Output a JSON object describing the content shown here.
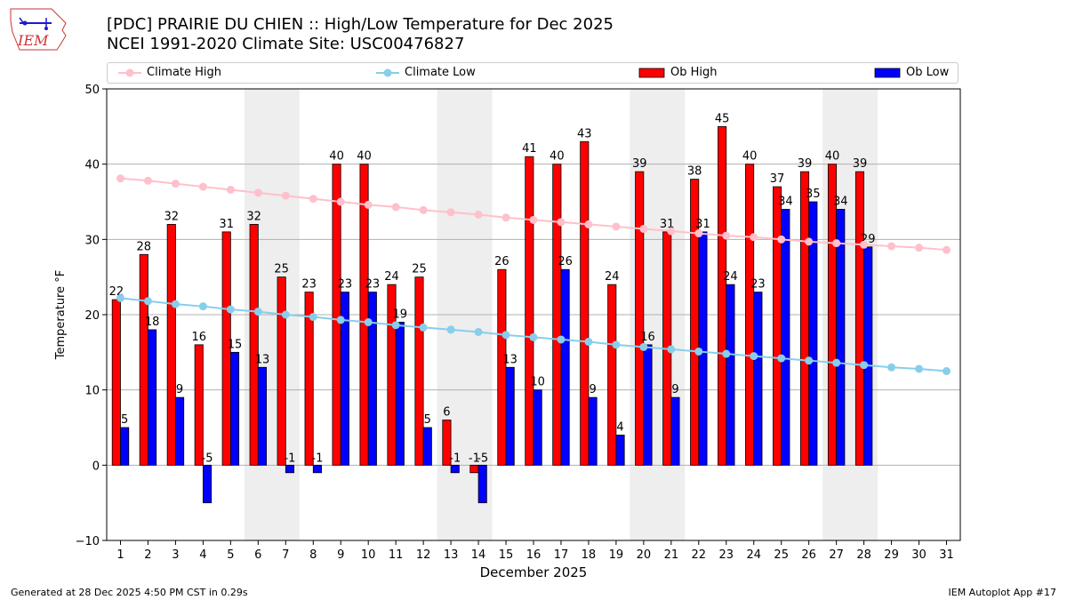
{
  "header": {
    "title_line1": "[PDC] PRAIRIE DU CHIEN :: High/Low Temperature for Dec 2025",
    "title_line2": "NCEI 1991-2020 Climate Site: USC00476827",
    "logo_text": "IEM"
  },
  "legend": {
    "climate_high": "Climate High",
    "climate_low": "Climate Low",
    "ob_high": "Ob High",
    "ob_low": "Ob Low"
  },
  "colors": {
    "climate_high": "#ffc0cb",
    "climate_low": "#87ceeb",
    "ob_high": "#ff0000",
    "ob_low": "#0000ff",
    "weekend_shade": "#eeeeee",
    "grid": "#b0b0b0"
  },
  "chart_data": {
    "type": "bar",
    "xlabel": "December 2025",
    "ylabel": "Temperature °F",
    "ylim": [
      -10,
      50
    ],
    "yticks": [
      -10,
      0,
      10,
      20,
      30,
      40,
      50
    ],
    "xlim": [
      0.5,
      31.5
    ],
    "days": [
      1,
      2,
      3,
      4,
      5,
      6,
      7,
      8,
      9,
      10,
      11,
      12,
      13,
      14,
      15,
      16,
      17,
      18,
      19,
      20,
      21,
      22,
      23,
      24,
      25,
      26,
      27,
      28,
      29,
      30,
      31
    ],
    "shaded_ranges": [
      [
        6,
        7
      ],
      [
        13,
        14
      ],
      [
        20,
        21
      ],
      [
        27,
        28
      ]
    ],
    "grid": "horizontal",
    "series": [
      {
        "name": "Ob High",
        "kind": "bar",
        "values": [
          22,
          28,
          32,
          16,
          31,
          32,
          25,
          23,
          40,
          40,
          24,
          25,
          6,
          -1,
          26,
          41,
          40,
          43,
          24,
          39,
          31,
          38,
          45,
          40,
          37,
          39,
          40,
          39
        ]
      },
      {
        "name": "Ob Low",
        "kind": "bar",
        "values": [
          5,
          18,
          9,
          -5,
          15,
          13,
          -1,
          -1,
          23,
          23,
          19,
          5,
          -1,
          -5,
          13,
          10,
          26,
          9,
          4,
          16,
          9,
          31,
          24,
          23,
          34,
          35,
          34,
          29
        ]
      },
      {
        "name": "Climate High",
        "kind": "line",
        "values": [
          38.1,
          37.8,
          37.4,
          37.0,
          36.6,
          36.2,
          35.8,
          35.4,
          35.0,
          34.6,
          34.3,
          33.9,
          33.6,
          33.3,
          32.9,
          32.6,
          32.3,
          32.0,
          31.7,
          31.4,
          31.1,
          30.8,
          30.5,
          30.3,
          30.0,
          29.7,
          29.5,
          29.3,
          29.1,
          28.9,
          28.6
        ]
      },
      {
        "name": "Climate Low",
        "kind": "line",
        "values": [
          22.2,
          21.8,
          21.4,
          21.1,
          20.7,
          20.4,
          20.0,
          19.7,
          19.3,
          19.0,
          18.6,
          18.3,
          18.0,
          17.7,
          17.3,
          17.0,
          16.7,
          16.4,
          16.0,
          15.7,
          15.4,
          15.1,
          14.8,
          14.5,
          14.2,
          13.9,
          13.6,
          13.3,
          13.0,
          12.8,
          12.5
        ]
      }
    ]
  },
  "footer": {
    "left": "Generated at 28 Dec 2025 4:50 PM CST in 0.29s",
    "right": "IEM Autoplot App #17"
  }
}
